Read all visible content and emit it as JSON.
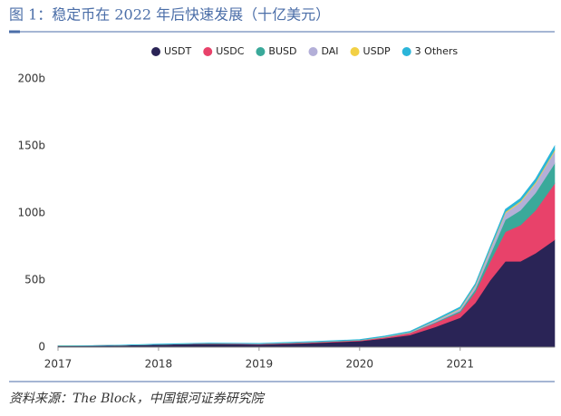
{
  "chart_data": {
    "type": "stacked-area",
    "title": "图 1：稳定币在 2022 年后快速发展（十亿美元）",
    "source": "资料来源：The Block，中国银河证券研究院",
    "x": [
      2017.0,
      2017.5,
      2018.0,
      2018.5,
      2019.0,
      2019.5,
      2020.0,
      2020.25,
      2020.5,
      2020.75,
      2021.0,
      2021.15,
      2021.3,
      2021.45,
      2021.6,
      2021.75,
      2021.94
    ],
    "series": [
      {
        "name": "USDT",
        "color": "#2a2456",
        "values": [
          1,
          1.2,
          2,
          2.5,
          2,
          3,
          4.5,
          6.5,
          9,
          15,
          22,
          33,
          50,
          64,
          64,
          70,
          80
        ]
      },
      {
        "name": "USDC",
        "color": "#e8426a",
        "values": [
          0,
          0,
          0,
          0.3,
          0.4,
          0.5,
          0.5,
          0.8,
          1.5,
          3,
          4,
          8,
          14,
          22,
          27,
          32,
          42
        ]
      },
      {
        "name": "BUSD",
        "color": "#3aa99a",
        "values": [
          0,
          0,
          0,
          0,
          0,
          0,
          0.1,
          0.1,
          0.2,
          0.5,
          1,
          2,
          5,
          9,
          11,
          13,
          15
        ]
      },
      {
        "name": "DAI",
        "color": "#b3afd8",
        "values": [
          0,
          0,
          0,
          0,
          0.1,
          0.1,
          0.1,
          0.2,
          0.3,
          1,
          1.5,
          2.5,
          4,
          5,
          6,
          7,
          9
        ]
      },
      {
        "name": "USDP",
        "color": "#f2d045",
        "values": [
          0,
          0,
          0,
          0,
          0,
          0.1,
          0.1,
          0.2,
          0.2,
          0.3,
          0.5,
          0.6,
          0.7,
          0.8,
          0.9,
          1,
          1
        ]
      },
      {
        "name": "3 Others",
        "color": "#2bb5d9",
        "values": [
          0,
          0.1,
          0.3,
          0.3,
          0.3,
          0.4,
          0.4,
          0.5,
          0.6,
          0.8,
          1,
          1.2,
          1.5,
          2,
          2,
          2.5,
          3
        ]
      }
    ],
    "xlim": [
      2017,
      2021.94
    ],
    "xticks": [
      2017,
      2018,
      2019,
      2020,
      2021
    ],
    "ylim": [
      0,
      200
    ],
    "yticks": [
      0,
      {
        "value": 50,
        "label": "50b"
      },
      {
        "value": 100,
        "label": "100b"
      },
      {
        "value": 150,
        "label": "150b"
      },
      {
        "value": 200,
        "label": "200b"
      }
    ],
    "grid": false
  }
}
